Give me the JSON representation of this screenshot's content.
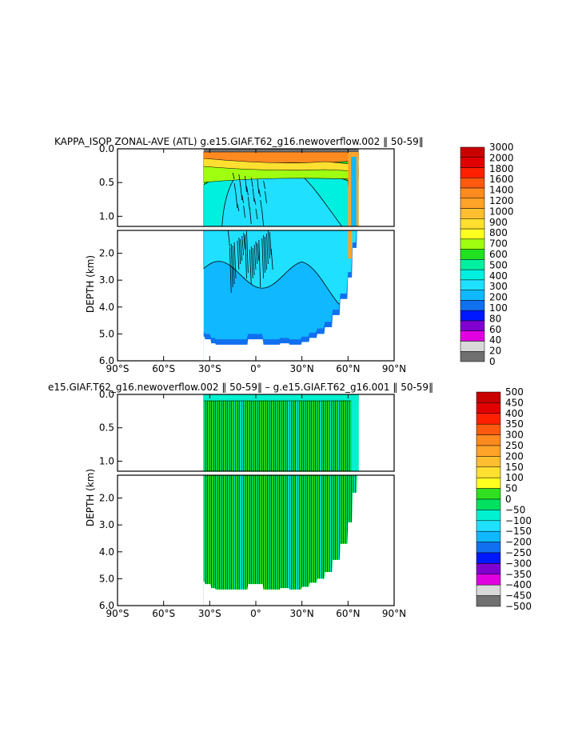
{
  "chart_data": [
    {
      "type": "heatmap",
      "title": "KAPPA_ISOP ZONAL-AVE (ATL) g.e15.GIAF.T62_g16.newoverflow.002 ‖ 50-59‖",
      "ylabel": "DEPTH (km)",
      "xlabel": "",
      "x_ticks": [
        "90°S",
        "60°S",
        "30°S",
        "0°",
        "30°N",
        "60°N",
        "90°N"
      ],
      "x_tick_values": [
        -90,
        -60,
        -30,
        0,
        30,
        60,
        90
      ],
      "y_ticks_upper": [
        "0.0",
        "0.5",
        "1.0"
      ],
      "y_tick_values_upper": [
        0.0,
        0.5,
        1.0
      ],
      "y_ticks_lower": [
        "2.0",
        "3.0",
        "4.0",
        "5.0",
        "6.0"
      ],
      "y_tick_values_lower": [
        2.0,
        3.0,
        4.0,
        5.0,
        6.0
      ],
      "xlim": [
        -90,
        90
      ],
      "ylim_upper": [
        0.0,
        1.15
      ],
      "ylim_lower": [
        1.15,
        6.0
      ],
      "ocean_lat_range": [
        -34,
        67
      ],
      "colorbar_labels": [
        "3000",
        "2000",
        "1800",
        "1600",
        "1400",
        "1200",
        "1000",
        "900",
        "800",
        "700",
        "600",
        "500",
        "400",
        "300",
        "200",
        "100",
        "80",
        "60",
        "40",
        "20",
        "0"
      ],
      "colorbar_colors": [
        "#c80000",
        "#e10000",
        "#ff2000",
        "#ff5a10",
        "#ff8a20",
        "#ffa428",
        "#ffbe30",
        "#ffe030",
        "#ffff20",
        "#a0ff10",
        "#20e020",
        "#00f0a0",
        "#00f0e0",
        "#20e0ff",
        "#10b8ff",
        "#1070f0",
        "#0018ff",
        "#8000d0",
        "#e000e0",
        "#d8d8d8",
        "#707070"
      ]
    },
    {
      "type": "heatmap",
      "title": "e15.GIAF.T62_g16.newoverflow.002 ‖ 50-59‖ – g.e15.GIAF.T62_g16.001 ‖ 50-59‖",
      "ylabel": "DEPTH (km)",
      "xlabel": "",
      "x_ticks": [
        "90°S",
        "60°S",
        "30°S",
        "0°",
        "30°N",
        "60°N",
        "90°N"
      ],
      "x_tick_values": [
        -90,
        -60,
        -30,
        0,
        30,
        60,
        90
      ],
      "y_ticks_upper": [
        "0.0",
        "0.5",
        "1.0"
      ],
      "y_tick_values_upper": [
        0.0,
        0.5,
        1.0
      ],
      "y_ticks_lower": [
        "2.0",
        "3.0",
        "4.0",
        "5.0",
        "6.0"
      ],
      "y_tick_values_lower": [
        2.0,
        3.0,
        4.0,
        5.0,
        6.0
      ],
      "xlim": [
        -90,
        90
      ],
      "ylim_upper": [
        0.0,
        1.15
      ],
      "ylim_lower": [
        1.15,
        6.0
      ],
      "ocean_lat_range": [
        -34,
        67
      ],
      "colorbar_labels": [
        "500",
        "450",
        "400",
        "350",
        "300",
        "250",
        "200",
        "150",
        "100",
        "50",
        "0",
        "−50",
        "−100",
        "−150",
        "−200",
        "−250",
        "−300",
        "−350",
        "−400",
        "−450",
        "−500"
      ],
      "colorbar_colors": [
        "#c80000",
        "#e10000",
        "#ff2000",
        "#ff5a10",
        "#ff8a20",
        "#ffa428",
        "#ffbe30",
        "#ffe030",
        "#ffff20",
        "#30e020",
        "#00e060",
        "#00f0d0",
        "#20e0ff",
        "#10b8ff",
        "#1070f0",
        "#0018ff",
        "#8000d0",
        "#e000e0",
        "#d8d8d8",
        "#707070"
      ]
    }
  ]
}
